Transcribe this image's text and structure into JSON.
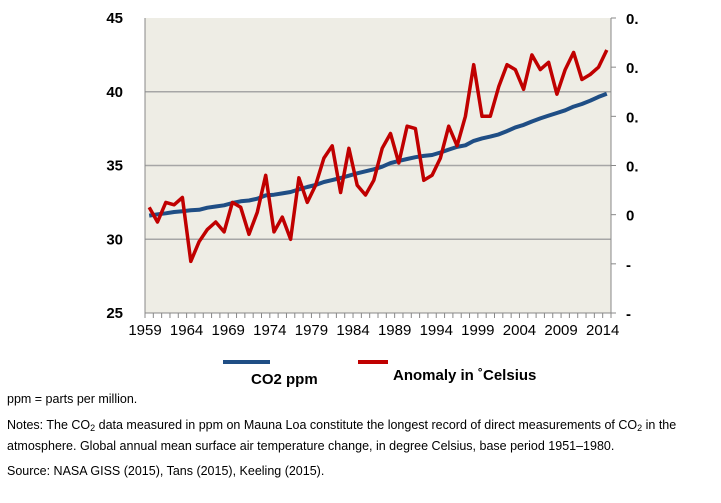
{
  "chart_data": {
    "type": "line",
    "title": "",
    "x": [
      1959,
      1960,
      1961,
      1962,
      1963,
      1964,
      1965,
      1966,
      1967,
      1968,
      1969,
      1970,
      1971,
      1972,
      1973,
      1974,
      1975,
      1976,
      1977,
      1978,
      1979,
      1980,
      1981,
      1982,
      1983,
      1984,
      1985,
      1986,
      1987,
      1988,
      1989,
      1990,
      1991,
      1992,
      1993,
      1994,
      1995,
      1996,
      1997,
      1998,
      1999,
      2000,
      2001,
      2002,
      2003,
      2004,
      2005,
      2006,
      2007,
      2008,
      2009,
      2010,
      2011,
      2012,
      2013,
      2014
    ],
    "x_tick_labels": [
      "1959",
      "1964",
      "1969",
      "1974",
      "1979",
      "1984",
      "1989",
      "1994",
      "1999",
      "2004",
      "2009",
      "2014"
    ],
    "left_axis": {
      "ylim": [
        25,
        45
      ],
      "ticks": [
        "25",
        "30",
        "35",
        "40",
        "45"
      ]
    },
    "right_axis": {
      "ylim": [
        -0.4,
        0.8
      ],
      "tick_labels": [
        "0.",
        "0.",
        "0.",
        "0.",
        "0",
        "-",
        "-"
      ]
    },
    "grid": true,
    "legend_position": "bottom",
    "series": [
      {
        "name": "CO2 ppm",
        "axis": "left",
        "color": "#1f4e85",
        "values": [
          31.6,
          31.69,
          31.76,
          31.85,
          31.9,
          31.96,
          32.0,
          32.14,
          32.22,
          32.3,
          32.46,
          32.57,
          32.63,
          32.75,
          32.97,
          33.02,
          33.11,
          33.2,
          33.38,
          33.54,
          33.68,
          33.88,
          34.01,
          34.15,
          34.31,
          34.47,
          34.61,
          34.74,
          34.92,
          35.16,
          35.31,
          35.44,
          35.56,
          35.65,
          35.71,
          35.88,
          36.08,
          36.26,
          36.37,
          36.67,
          36.84,
          36.96,
          37.11,
          37.33,
          37.58,
          37.75,
          37.98,
          38.19,
          38.38,
          38.56,
          38.74,
          38.99,
          39.17,
          39.39,
          39.65,
          39.87
        ]
      },
      {
        "name": "Anomaly in ˚Celsius",
        "axis": "right",
        "color": "#c00000",
        "values": [
          0.03,
          -0.03,
          0.05,
          0.04,
          0.07,
          -0.19,
          -0.11,
          -0.06,
          -0.03,
          -0.07,
          0.05,
          0.03,
          -0.08,
          0.01,
          0.16,
          -0.07,
          -0.01,
          -0.1,
          0.15,
          0.05,
          0.12,
          0.23,
          0.28,
          0.09,
          0.27,
          0.12,
          0.08,
          0.14,
          0.27,
          0.33,
          0.21,
          0.36,
          0.35,
          0.14,
          0.16,
          0.23,
          0.36,
          0.28,
          0.4,
          0.61,
          0.4,
          0.4,
          0.52,
          0.61,
          0.59,
          0.51,
          0.65,
          0.59,
          0.62,
          0.49,
          0.59,
          0.66,
          0.55,
          0.57,
          0.6,
          0.67
        ]
      }
    ]
  },
  "notes": {
    "ppm": "ppm = parts per million.",
    "notes_a": "Notes: The CO",
    "sub1": "2",
    "notes_b": " data measured in ppm on Mauna Loa constitute the longest record of direct measurements of CO",
    "sub2": "2",
    "notes_c": " in the atmosphere. Global annual mean surface air temperature change, in degree Celsius, base period 1951–1980.",
    "source": "Source: NASA GISS (2015), Tans (2015),  Keeling (2015)."
  }
}
